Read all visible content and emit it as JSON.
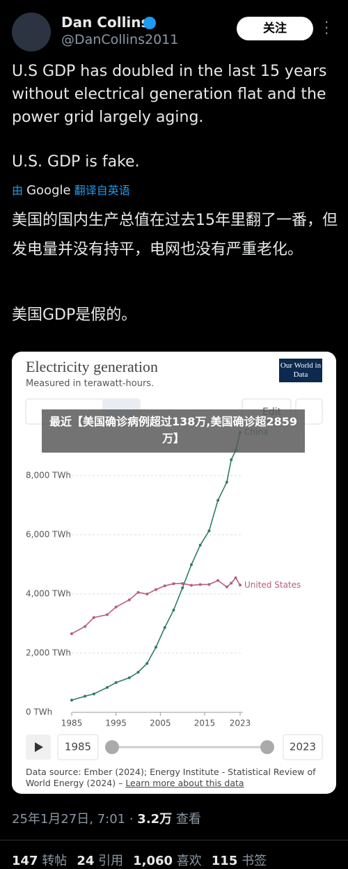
{
  "author": {
    "name": "Dan Collins",
    "handle": "@DanCollins2011"
  },
  "follow_button": "关注",
  "tweet_text": [
    "U.S GDP has doubled in the last 15 years without electrical generation flat and the power grid largely aging.",
    "U.S. GDP is fake."
  ],
  "translation_note": {
    "prefix": "由",
    "provider": "Google",
    "suffix": "翻译自英语"
  },
  "translated_text": [
    "美国的国内生产总值在过去15年里翻了一番，但发电量并没有持平，电网也没有严重老化。",
    "美国GDP是假的。"
  ],
  "overlay_banner": "最近【美国确诊病例超过138万,美国确诊超2859万】",
  "chart_data": {
    "type": "line",
    "title": "Electricity generation",
    "subtitle": "Measured in terawatt-hours.",
    "logo": "Our World in Data",
    "edit_button": "Edit",
    "x": [
      1985,
      1988,
      1990,
      1993,
      1995,
      1998,
      2000,
      2002,
      2004,
      2006,
      2008,
      2010,
      2012,
      2014,
      2016,
      2018,
      2020,
      2021,
      2022,
      2023
    ],
    "series": [
      {
        "name": "China",
        "color": "#2e7d5b",
        "values": [
          411,
          545,
          621,
          840,
          1007,
          1167,
          1356,
          1654,
          2200,
          2866,
          3457,
          4207,
          4988,
          5649,
          6133,
          7166,
          7779,
          8534,
          8849,
          9456
        ]
      },
      {
        "name": "United States",
        "color": "#b85c7a",
        "values": [
          2657,
          2900,
          3203,
          3300,
          3558,
          3800,
          4053,
          3996,
          4148,
          4275,
          4348,
          4354,
          4292,
          4319,
          4322,
          4455,
          4239,
          4365,
          4547,
          4300
        ]
      }
    ],
    "xlim": [
      1985,
      2023
    ],
    "xticks": [
      1985,
      1995,
      2005,
      2015,
      2023
    ],
    "ylim": [
      0,
      9600
    ],
    "yticks": [
      {
        "value": 0,
        "label": "0 TWh"
      },
      {
        "value": 2000,
        "label": "2,000 TWh"
      },
      {
        "value": 4000,
        "label": "4,000 TWh"
      },
      {
        "value": 6000,
        "label": "6,000 TWh"
      },
      {
        "value": 8000,
        "label": "8,000 TWh"
      }
    ],
    "grid": true,
    "source": "Data source: Ember (2024); Energy Institute - Statistical Review of World Energy (2024) –",
    "source_link": "Learn more about this data"
  },
  "timestamp": "25年1月27日, 7:01",
  "views": {
    "count": "3.2万",
    "label": "查看"
  },
  "stats": [
    {
      "count": "147",
      "label": "转帖"
    },
    {
      "count": "24",
      "label": "引用"
    },
    {
      "count": "1,060",
      "label": "喜欢"
    },
    {
      "count": "115",
      "label": "书签"
    }
  ]
}
